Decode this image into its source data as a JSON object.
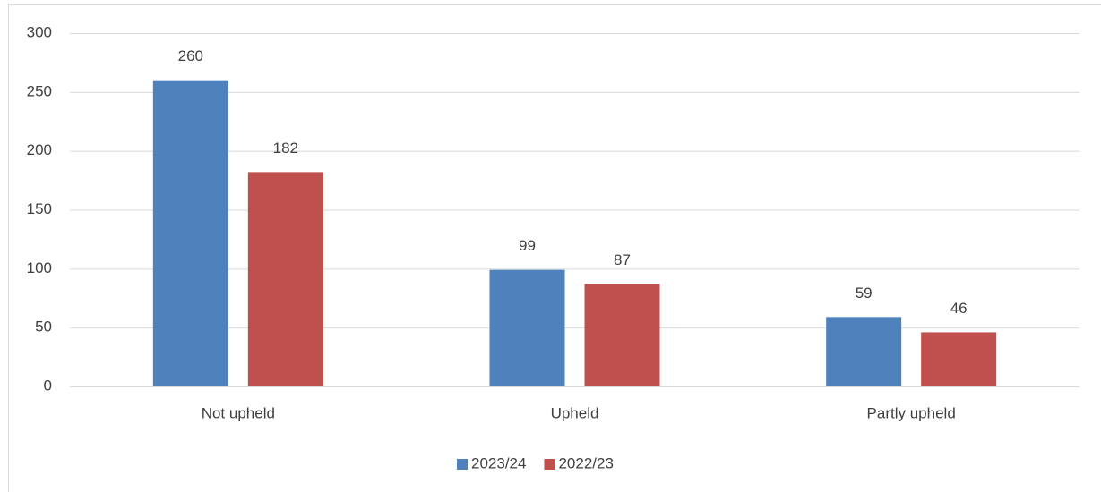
{
  "chart_data": {
    "type": "bar",
    "categories": [
      "Not upheld",
      "Upheld",
      "Partly upheld"
    ],
    "series": [
      {
        "name": "2023/24",
        "color": "#4f81bd",
        "values": [
          260,
          99,
          59
        ]
      },
      {
        "name": "2022/23",
        "color": "#c0504d",
        "values": [
          182,
          87,
          46
        ]
      }
    ],
    "ylim": [
      0,
      300
    ],
    "yticks": [
      0,
      50,
      100,
      150,
      200,
      250,
      300
    ],
    "grid": true,
    "legend": "bottom",
    "data_labels": true
  }
}
